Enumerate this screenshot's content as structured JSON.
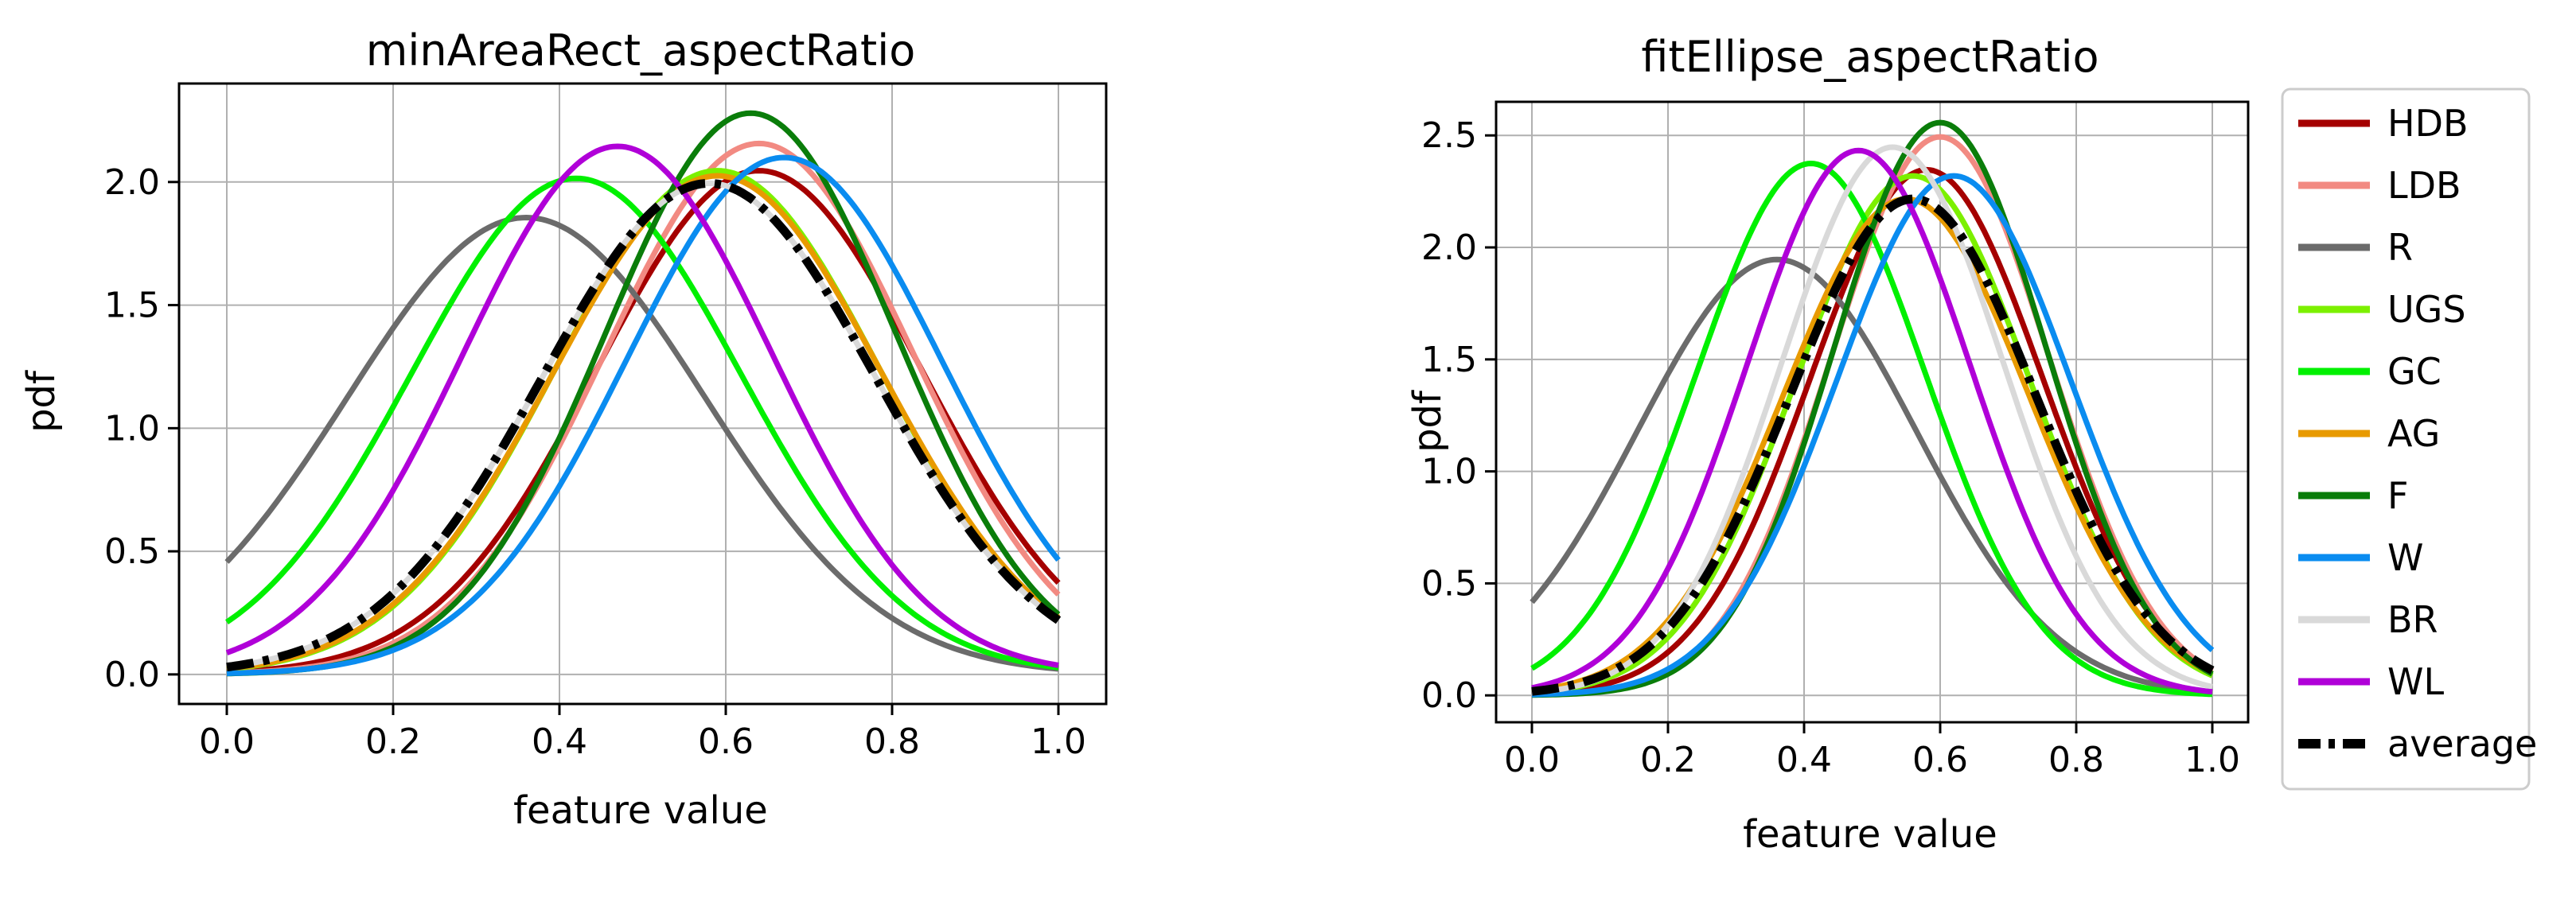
{
  "chart_data": [
    {
      "type": "line",
      "title": "minAreaRect_aspectRatio",
      "xlabel": "feature value",
      "ylabel": "pdf",
      "xlim": [
        0.0,
        1.0
      ],
      "ylim": [
        -0.12,
        2.4
      ],
      "xticks": [
        "0.0",
        "0.2",
        "0.4",
        "0.6",
        "0.8",
        "1.0"
      ],
      "yticks": [
        "0.0",
        "0.5",
        "1.0",
        "1.5",
        "2.0"
      ],
      "grid": true,
      "series": [
        {
          "name": "HDB",
          "color": "#a50000",
          "mu": 0.64,
          "sigma": 0.195
        },
        {
          "name": "LDB",
          "color": "#f28a82",
          "mu": 0.64,
          "sigma": 0.185
        },
        {
          "name": "R",
          "color": "#6b6b6b",
          "mu": 0.36,
          "sigma": 0.215
        },
        {
          "name": "UGS",
          "color": "#7cf000",
          "mu": 0.59,
          "sigma": 0.195
        },
        {
          "name": "GC",
          "color": "#00f000",
          "mu": 0.42,
          "sigma": 0.198
        },
        {
          "name": "AG",
          "color": "#e89a00",
          "mu": 0.59,
          "sigma": 0.197
        },
        {
          "name": "F",
          "color": "#0a7d0a",
          "mu": 0.63,
          "sigma": 0.175
        },
        {
          "name": "W",
          "color": "#0a8cf0",
          "mu": 0.67,
          "sigma": 0.19
        },
        {
          "name": "BR",
          "color": "#d9d9d9",
          "mu": 0.58,
          "sigma": 0.2
        },
        {
          "name": "WL",
          "color": "#b000d8",
          "mu": 0.47,
          "sigma": 0.186
        },
        {
          "name": "average",
          "color": "#000000",
          "mu": 0.58,
          "sigma": 0.2
        }
      ]
    },
    {
      "type": "line",
      "title": "fitEllipse_aspectRatio",
      "xlabel": "feature value",
      "ylabel": "pdf",
      "xlim": [
        0.0,
        1.0
      ],
      "ylim": [
        -0.12,
        2.65
      ],
      "xticks": [
        "0.0",
        "0.2",
        "0.4",
        "0.6",
        "0.8",
        "1.0"
      ],
      "yticks": [
        "0.0",
        "0.5",
        "1.0",
        "1.5",
        "2.0",
        "2.5"
      ],
      "grid": true,
      "series": [
        {
          "name": "HDB",
          "color": "#a50000",
          "mu": 0.58,
          "sigma": 0.17
        },
        {
          "name": "LDB",
          "color": "#f28a82",
          "mu": 0.6,
          "sigma": 0.16
        },
        {
          "name": "R",
          "color": "#6b6b6b",
          "mu": 0.36,
          "sigma": 0.205
        },
        {
          "name": "UGS",
          "color": "#7cf000",
          "mu": 0.56,
          "sigma": 0.172
        },
        {
          "name": "GC",
          "color": "#00f000",
          "mu": 0.41,
          "sigma": 0.168
        },
        {
          "name": "AG",
          "color": "#e89a00",
          "mu": 0.55,
          "sigma": 0.18
        },
        {
          "name": "F",
          "color": "#0a7d0a",
          "mu": 0.6,
          "sigma": 0.156
        },
        {
          "name": "W",
          "color": "#0a8cf0",
          "mu": 0.62,
          "sigma": 0.172
        },
        {
          "name": "BR",
          "color": "#d9d9d9",
          "mu": 0.53,
          "sigma": 0.163
        },
        {
          "name": "WL",
          "color": "#b000d8",
          "mu": 0.48,
          "sigma": 0.164
        },
        {
          "name": "average",
          "color": "#000000",
          "mu": 0.56,
          "sigma": 0.18
        }
      ]
    }
  ]
}
